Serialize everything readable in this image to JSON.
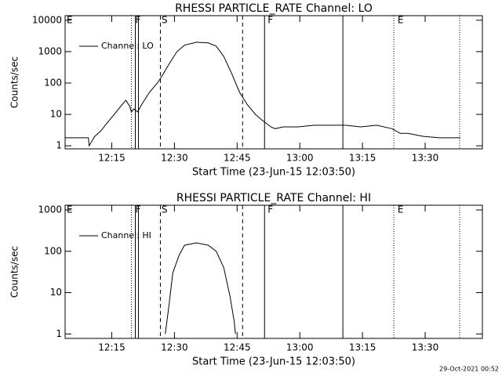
{
  "chart_data": [
    {
      "type": "line",
      "title": "RHESSI PARTICLE_RATE Channel: LO",
      "xlabel": "Start Time (23-Jun-15 12:03:50)",
      "ylabel": "Counts/sec",
      "log_y": true,
      "legend": "upper left",
      "xlim": [
        3.83,
        103.7
      ],
      "ylim": [
        0.8,
        14000
      ],
      "xticks": [
        {
          "value": 15,
          "label": "12:15"
        },
        {
          "value": 30,
          "label": "12:30"
        },
        {
          "value": 45,
          "label": "12:45"
        },
        {
          "value": 60,
          "label": "13:00"
        },
        {
          "value": 75,
          "label": "13:15"
        },
        {
          "value": 90,
          "label": "13:30"
        }
      ],
      "yticks": [
        1,
        10,
        100,
        1000,
        10000
      ],
      "x": [
        3.83,
        9.4,
        9.6,
        10.9,
        12.4,
        13.7,
        15.6,
        17.4,
        18.4,
        19.3,
        19.7,
        20.3,
        21.2,
        22.1,
        24,
        25.9,
        26.8,
        28.7,
        30.6,
        32.4,
        35.3,
        38.1,
        40,
        41.8,
        43.7,
        45.6,
        47.5,
        49.4,
        51.3,
        53.1,
        54.1,
        56,
        59.6,
        63.4,
        67.1,
        70.9,
        74.6,
        78.4,
        82.1,
        84,
        85.9,
        89.6,
        93.4,
        98.4
      ],
      "series": [
        {
          "name": "Channel: LO",
          "color": "#000000",
          "values": [
            1.8,
            1.8,
            1,
            2,
            3,
            5,
            10,
            20,
            28,
            18,
            12,
            15,
            12,
            20,
            50,
            100,
            150,
            400,
            1000,
            1600,
            2000,
            1900,
            1500,
            700,
            200,
            50,
            20,
            10,
            6,
            4,
            3.5,
            4,
            4,
            4.5,
            4.5,
            4.5,
            4,
            4.5,
            3.5,
            2.5,
            2.5,
            2,
            1.8,
            1.8
          ]
        }
      ],
      "markers": [
        {
          "x": 19.69,
          "style": "dotted"
        },
        {
          "x": 20.63,
          "style": "solid"
        },
        {
          "x": 21.38,
          "style": "solid"
        },
        {
          "x": 26.63,
          "style": "dashed"
        },
        {
          "x": 46.31,
          "style": "dashed"
        },
        {
          "x": 51.56,
          "style": "solid"
        },
        {
          "x": 70.31,
          "style": "solid"
        },
        {
          "x": 82.5,
          "style": "dotted"
        },
        {
          "x": 98.25,
          "style": "dotted"
        }
      ],
      "marker_labels": [
        {
          "x": 4.2,
          "label": "E"
        },
        {
          "x": 20.63,
          "label": "F"
        },
        {
          "x": 26.9,
          "label": "S"
        },
        {
          "x": 52.3,
          "label": "F"
        },
        {
          "x": 83.4,
          "label": "E"
        }
      ]
    },
    {
      "type": "line",
      "title": "RHESSI PARTICLE_RATE Channel: HI",
      "xlabel": "Start Time (23-Jun-15 12:03:50)",
      "ylabel": "Counts/sec",
      "log_y": true,
      "legend": "upper left",
      "xlim": [
        3.83,
        103.7
      ],
      "ylim": [
        0.78,
        1300
      ],
      "xticks": [
        {
          "value": 15,
          "label": "12:15"
        },
        {
          "value": 30,
          "label": "12:30"
        },
        {
          "value": 45,
          "label": "12:45"
        },
        {
          "value": 60,
          "label": "13:00"
        },
        {
          "value": 75,
          "label": "13:15"
        },
        {
          "value": 90,
          "label": "13:30"
        }
      ],
      "yticks": [
        1,
        10,
        100,
        1000
      ],
      "x": [
        27.8,
        28.7,
        29.6,
        31.1,
        32.4,
        35.3,
        38.1,
        40,
        41.8,
        43.3,
        44.3,
        44.6
      ],
      "series": [
        {
          "name": "Channel: HI",
          "color": "#000000",
          "values": [
            1,
            5,
            30,
            80,
            140,
            160,
            140,
            100,
            40,
            8,
            2,
            1
          ]
        }
      ],
      "markers": [
        {
          "x": 19.69,
          "style": "dotted"
        },
        {
          "x": 20.63,
          "style": "solid"
        },
        {
          "x": 21.38,
          "style": "solid"
        },
        {
          "x": 26.63,
          "style": "dashed"
        },
        {
          "x": 46.31,
          "style": "dashed"
        },
        {
          "x": 51.56,
          "style": "solid"
        },
        {
          "x": 70.31,
          "style": "solid"
        },
        {
          "x": 82.5,
          "style": "dotted"
        },
        {
          "x": 98.25,
          "style": "dotted"
        }
      ],
      "marker_labels": [
        {
          "x": 4.2,
          "label": "E"
        },
        {
          "x": 20.63,
          "label": "F"
        },
        {
          "x": 26.9,
          "label": "S"
        },
        {
          "x": 52.3,
          "label": "F"
        },
        {
          "x": 83.4,
          "label": "E"
        }
      ]
    }
  ],
  "footer": "29-Oct-2021 00:52"
}
